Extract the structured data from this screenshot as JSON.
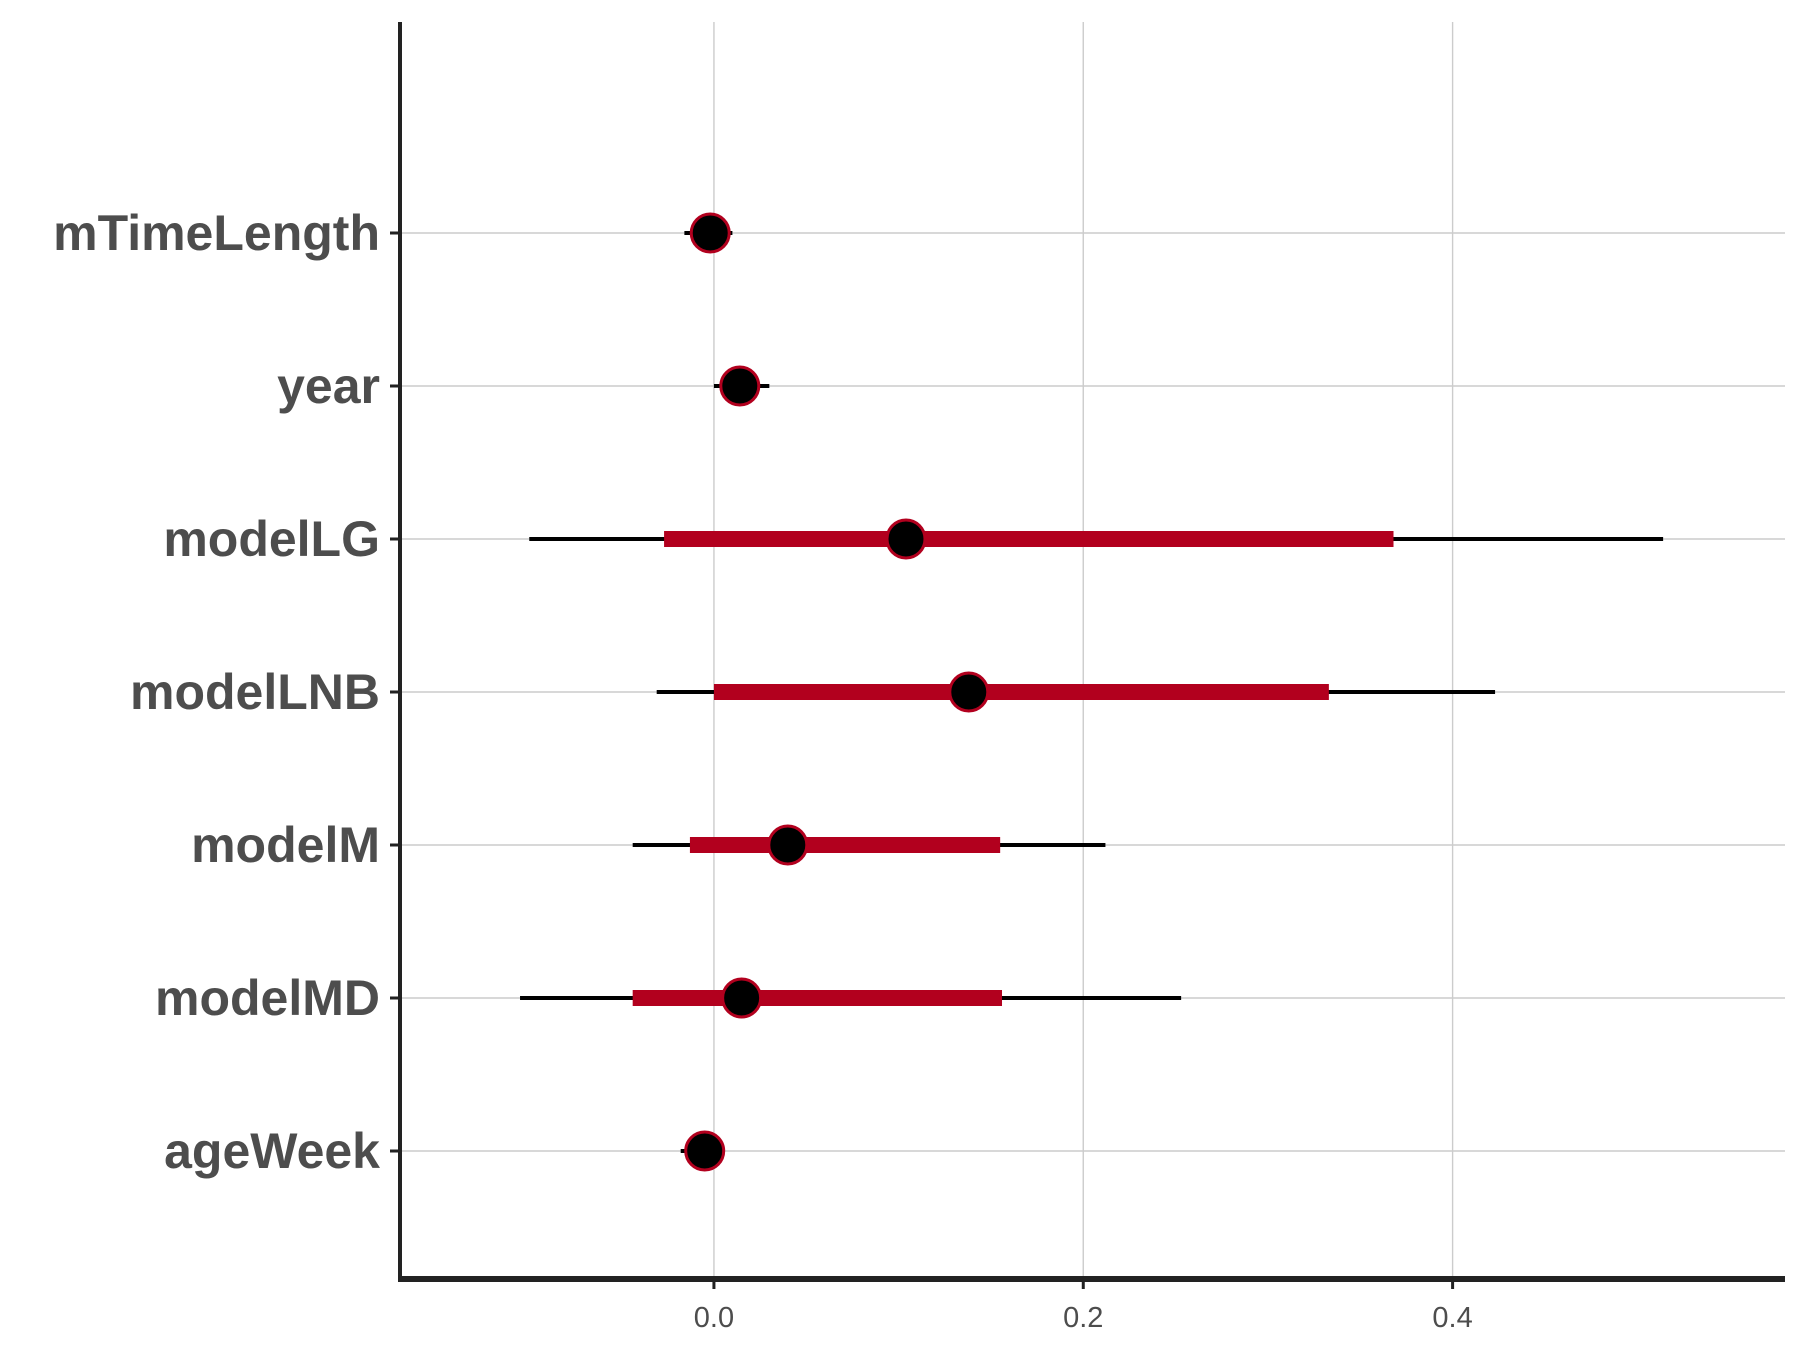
{
  "chart_data": {
    "type": "interval",
    "title": "",
    "xlabel": "",
    "ylabel": "",
    "xlim": [
      -0.17,
      0.58
    ],
    "x_ticks": [
      0.0,
      0.2,
      0.4
    ],
    "x_tick_labels": [
      "0.0",
      "0.2",
      "0.4"
    ],
    "grid": true,
    "legend": "none",
    "colors": {
      "inner_interval": "#b2001e",
      "outer_interval": "#000000",
      "point_fill": "#000000",
      "point_stroke": "#b2001e",
      "grid": "#cccccc",
      "axis": "#222222"
    },
    "parameters": [
      {
        "label": "mTimeLength",
        "estimate": -0.002,
        "inner": [
          -0.008,
          0.004
        ],
        "outer": [
          -0.016,
          0.01
        ]
      },
      {
        "label": "year",
        "estimate": 0.014,
        "inner": [
          0.004,
          0.024
        ],
        "outer": [
          0.0,
          0.03
        ]
      },
      {
        "label": "modelLG",
        "estimate": 0.104,
        "inner": [
          -0.027,
          0.368
        ],
        "outer": [
          -0.1,
          0.514
        ]
      },
      {
        "label": "modelLNB",
        "estimate": 0.138,
        "inner": [
          0.0,
          0.333
        ],
        "outer": [
          -0.031,
          0.423
        ]
      },
      {
        "label": "modelM",
        "estimate": 0.04,
        "inner": [
          -0.013,
          0.155
        ],
        "outer": [
          -0.044,
          0.212
        ]
      },
      {
        "label": "modelMD",
        "estimate": 0.015,
        "inner": [
          -0.044,
          0.156
        ],
        "outer": [
          -0.105,
          0.253
        ]
      },
      {
        "label": "ageWeek",
        "estimate": -0.005,
        "inner": [
          -0.01,
          0.0
        ],
        "outer": [
          -0.018,
          0.004
        ]
      }
    ]
  }
}
